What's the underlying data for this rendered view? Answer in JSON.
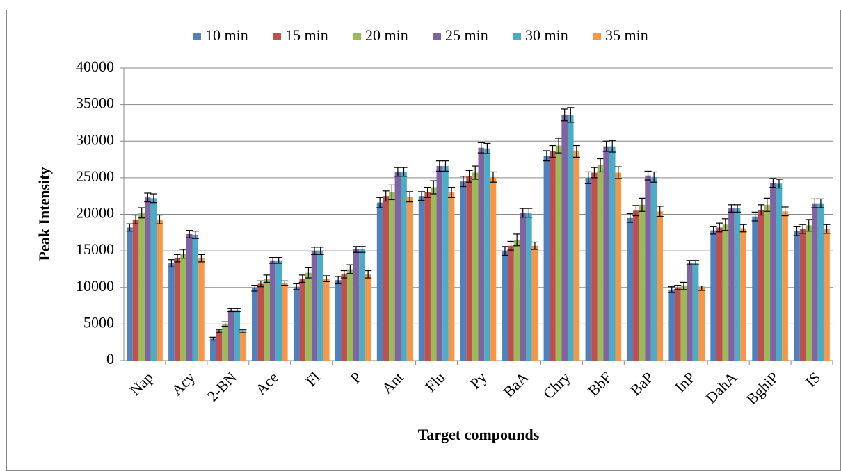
{
  "chart_data": {
    "type": "bar",
    "x_label": "Target compounds",
    "y_label": "Peak Intensity",
    "categories": [
      "Nap",
      "Acy",
      "2-BN",
      "Ace",
      "Fl",
      "P",
      "Ant",
      "Flu",
      "Py",
      "BaA",
      "Chry",
      "BbF",
      "BaP",
      "InP",
      "DahA",
      "BghiP",
      "IS"
    ],
    "series": [
      {
        "name": "10 min",
        "color": "#4f81bd",
        "values": [
          18200,
          13300,
          3000,
          9900,
          10100,
          11000,
          21600,
          22500,
          24500,
          15000,
          28000,
          25000,
          19500,
          9700,
          17800,
          19700,
          17700
        ],
        "errors": [
          500,
          500,
          200,
          400,
          400,
          500,
          700,
          600,
          700,
          600,
          700,
          800,
          600,
          400,
          500,
          600,
          600
        ]
      },
      {
        "name": "15 min",
        "color": "#c0504d",
        "values": [
          19300,
          14000,
          4000,
          10500,
          11200,
          11800,
          22500,
          23000,
          25200,
          15700,
          28600,
          25700,
          20500,
          10000,
          18200,
          20600,
          18000
        ],
        "errors": [
          600,
          500,
          200,
          400,
          500,
          500,
          700,
          700,
          800,
          600,
          800,
          700,
          700,
          300,
          600,
          700,
          600
        ]
      },
      {
        "name": "20 min",
        "color": "#9bbb59",
        "values": [
          20200,
          14600,
          5000,
          11200,
          12000,
          12500,
          23000,
          23700,
          25700,
          16500,
          29400,
          26700,
          21300,
          10200,
          18600,
          21300,
          18500
        ],
        "errors": [
          700,
          600,
          300,
          500,
          700,
          600,
          1000,
          900,
          900,
          800,
          1000,
          900,
          900,
          500,
          800,
          900,
          800
        ]
      },
      {
        "name": "25 min",
        "color": "#8064a2",
        "values": [
          22300,
          17300,
          6900,
          13700,
          15000,
          15200,
          25800,
          26600,
          29100,
          20200,
          33600,
          29300,
          25300,
          13400,
          20800,
          24300,
          21500
        ],
        "errors": [
          600,
          500,
          200,
          400,
          500,
          400,
          600,
          700,
          700,
          600,
          800,
          700,
          600,
          300,
          500,
          600,
          600
        ]
      },
      {
        "name": "30 min",
        "color": "#4bacc6",
        "values": [
          22200,
          17200,
          6900,
          13700,
          15000,
          15200,
          25800,
          26600,
          29000,
          20200,
          33600,
          29300,
          25100,
          13400,
          20800,
          24200,
          21500
        ],
        "errors": [
          600,
          500,
          200,
          400,
          500,
          400,
          600,
          700,
          700,
          600,
          1000,
          800,
          700,
          300,
          500,
          600,
          600
        ]
      },
      {
        "name": "35 min",
        "color": "#f79646",
        "values": [
          19300,
          14000,
          4000,
          10600,
          11200,
          11800,
          22400,
          23000,
          25100,
          15700,
          28600,
          25700,
          20400,
          9900,
          18100,
          20400,
          18000
        ],
        "errors": [
          600,
          500,
          200,
          300,
          400,
          500,
          700,
          700,
          700,
          500,
          800,
          800,
          700,
          300,
          500,
          600,
          600
        ]
      }
    ],
    "ylim": [
      0,
      40000
    ],
    "yticks": [
      0,
      5000,
      10000,
      15000,
      20000,
      25000,
      30000,
      35000,
      40000
    ],
    "grid": true,
    "legend": "top"
  }
}
